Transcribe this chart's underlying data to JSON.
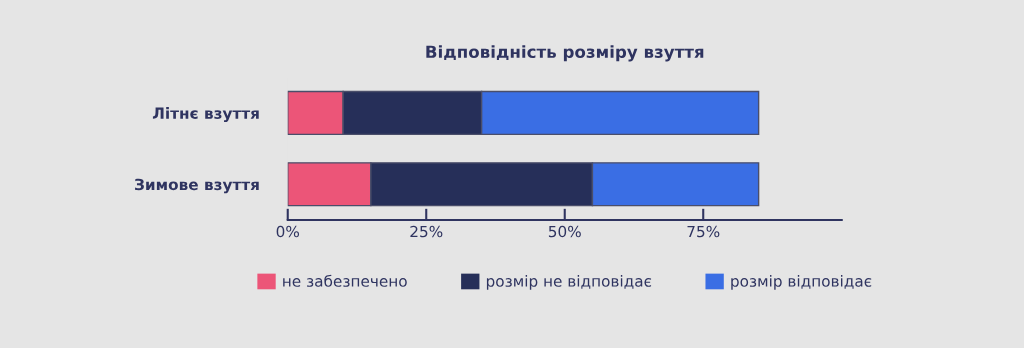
{
  "chart_data": {
    "type": "bar",
    "orientation": "horizontal",
    "stacked": true,
    "title": "Відповідність розміру взуття",
    "categories": [
      "Літнє взуття",
      "Зимове взуття"
    ],
    "series": [
      {
        "name": "не забезпечено",
        "color": "#ec5578",
        "values": [
          10,
          15
        ]
      },
      {
        "name": "розмір не відповідає",
        "color": "#262f59",
        "values": [
          25,
          40
        ]
      },
      {
        "name": "розмір відповідає",
        "color": "#3a6ee4",
        "values": [
          50,
          30
        ]
      }
    ],
    "xlim": [
      0,
      100
    ],
    "xticks": [
      {
        "value": 0,
        "label": "0%"
      },
      {
        "value": 25,
        "label": "25%"
      },
      {
        "value": 50,
        "label": "50%"
      },
      {
        "value": 75,
        "label": "75%"
      }
    ],
    "grid": false,
    "legend": "bottom"
  }
}
